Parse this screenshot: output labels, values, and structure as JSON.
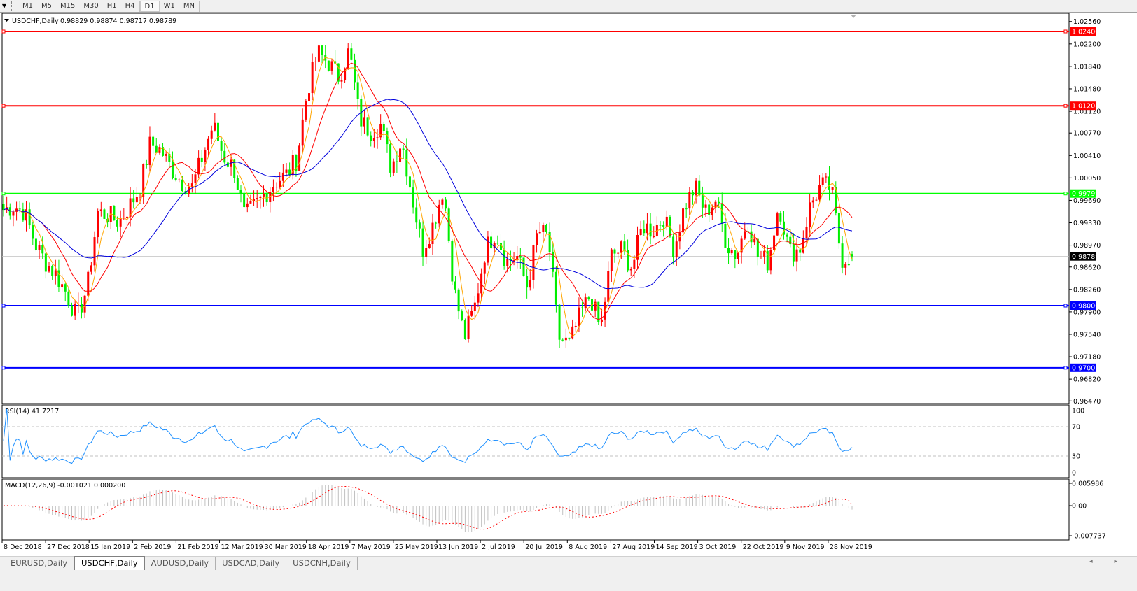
{
  "toolbar": {
    "timeframes": [
      "M1",
      "M5",
      "M15",
      "M30",
      "H1",
      "H4",
      "D1",
      "W1",
      "MN"
    ],
    "active": "D1"
  },
  "chart_header": {
    "symbol": "USDCHF,Daily",
    "ohlc": "0.98829 0.98874 0.98717 0.98789"
  },
  "colors": {
    "bull_candle": "#ff0000",
    "bear_candle": "#00ee00",
    "ma_fast": "#ffa500",
    "ma_mid": "#ff0000",
    "ma_slow": "#0000dd",
    "rsi": "#1e90ff",
    "macd_hist": "#c0c0c0",
    "macd_signal": "#ff0000",
    "resistance": "#ff0000",
    "pivot": "#00ff00",
    "support": "#0000ff"
  },
  "chart_data": [
    {
      "type": "candlestick",
      "symbol": "USDCHF",
      "timeframe": "Daily",
      "ylim": [
        0.96429,
        1.0268
      ],
      "price_ticks": [
        "1.02560",
        "1.02200",
        "1.01840",
        "1.01480",
        "1.01120",
        "1.00770",
        "1.00410",
        "1.00050",
        "0.99690",
        "0.99330",
        "0.98970",
        "0.98620",
        "0.98260",
        "0.97900",
        "0.97540",
        "0.97180",
        "0.96820",
        "0.96470"
      ],
      "date_ticks": [
        "8 Dec 2018",
        "27 Dec 2018",
        "15 Jan 2019",
        "2 Feb 2019",
        "21 Feb 2019",
        "12 Mar 2019",
        "30 Mar 2019",
        "18 Apr 2019",
        "7 May 2019",
        "25 May 2019",
        "13 Jun 2019",
        "2 Jul 2019",
        "20 Jul 2019",
        "8 Aug 2019",
        "27 Aug 2019",
        "14 Sep 2019",
        "3 Oct 2019",
        "22 Oct 2019",
        "9 Nov 2019",
        "28 Nov 2019"
      ],
      "close_path_approx": [
        0.9954,
        0.996,
        0.995,
        0.99,
        0.987,
        0.985,
        0.982,
        0.978,
        0.983,
        0.995,
        0.9945,
        0.9935,
        0.996,
        0.9987,
        1.006,
        1.005,
        1.002,
        0.9999,
        0.999,
        1.004,
        1.009,
        1.004,
        1.002,
        0.9943,
        0.996,
        0.998,
        1.0,
        1.001,
        1.0035,
        1.0145,
        1.0206,
        1.019,
        1.0167,
        1.021,
        1.01,
        1.008,
        1.009,
        1.0021,
        1.0066,
        0.9976,
        0.989,
        0.993,
        0.999,
        0.9828,
        0.9749,
        0.98,
        0.989,
        0.992,
        0.987,
        0.988,
        0.983,
        0.992,
        0.991,
        0.9749,
        0.9738,
        0.9783,
        0.9817,
        0.976,
        0.988,
        0.989,
        0.986,
        0.993,
        0.992,
        0.9943,
        0.989,
        0.996,
        0.999,
        0.995,
        0.997,
        0.99,
        0.988,
        0.994,
        0.988,
        0.987,
        0.9965,
        0.9886,
        0.989,
        0.996,
        0.9993,
        0.999,
        0.9875,
        0.98789
      ],
      "last_bar": {
        "open": 0.98829,
        "high": 0.98874,
        "low": 0.98717,
        "close": 0.98789
      },
      "horizontal_lines": [
        {
          "price": "1.02400",
          "kind": "resistance"
        },
        {
          "price": "1.01208",
          "kind": "resistance"
        },
        {
          "price": "0.99799",
          "kind": "pivot"
        },
        {
          "price": "0.98000",
          "kind": "support"
        },
        {
          "price": "0.97003",
          "kind": "support"
        }
      ],
      "current_price": "0.98789"
    },
    {
      "type": "line",
      "indicator": "RSI(14)",
      "label": "RSI(14) 41.7217",
      "value": 41.7217,
      "ylim": [
        0,
        100
      ],
      "levels": [
        30,
        70
      ],
      "ticks": [
        "100",
        "70",
        "30",
        "0"
      ]
    },
    {
      "type": "bar+line",
      "indicator": "MACD(12,26,9)",
      "label": "MACD(12,26,9) -0.001021 0.000200",
      "main": -0.001021,
      "signal": 0.0002,
      "ylim": [
        -0.007737,
        0.005986
      ],
      "ticks": [
        "0.005986",
        "0.00",
        "-0.007737"
      ]
    }
  ],
  "tabs": [
    "EURUSD,Daily",
    "USDCHF,Daily",
    "AUDUSD,Daily",
    "USDCAD,Daily",
    "USDCNH,Daily"
  ],
  "active_tab": "USDCHF,Daily",
  "scroll_arrows": "◂ ▸"
}
